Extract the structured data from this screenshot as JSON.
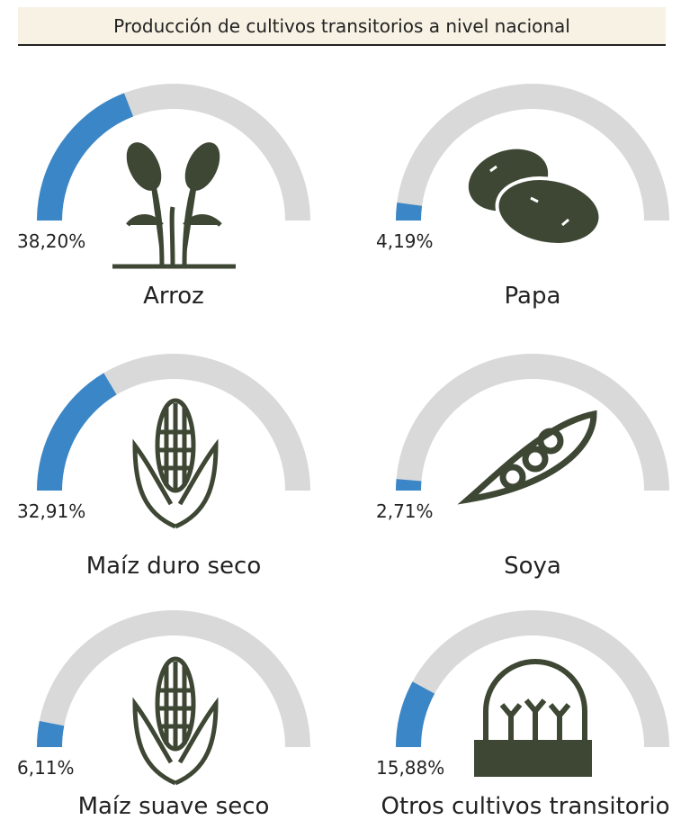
{
  "chart_data": {
    "type": "gauge",
    "title": "Producción de cultivos transitorios a nivel nacional",
    "categories": [
      "Arroz",
      "Papa",
      "Maíz duro seco",
      "Soya",
      "Maíz suave seco",
      "Otros cultivos transitorio"
    ],
    "values": [
      38.2,
      4.19,
      32.91,
      2.71,
      6.11,
      15.88
    ],
    "value_labels": [
      "38,20%",
      "4,19%",
      "32,91%",
      "2,71%",
      "6,11%",
      "15,88%"
    ],
    "ylim": [
      0,
      100
    ],
    "color": "#3b86c6",
    "track_color": "#d9d9d9"
  }
}
